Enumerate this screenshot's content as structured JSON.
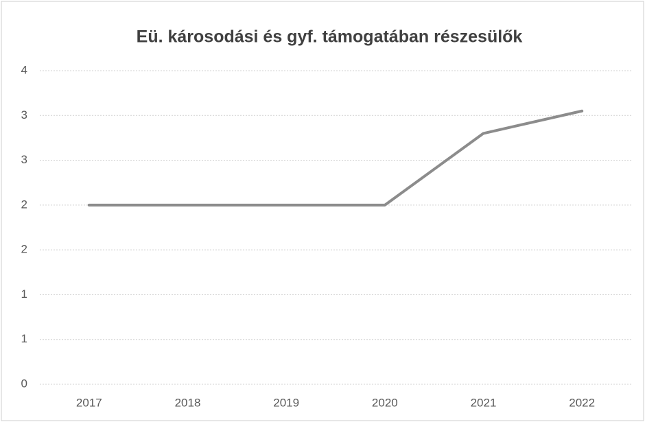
{
  "chart_data": {
    "type": "line",
    "title": "Eü. károsodási és gyf. támogatában részesülők",
    "categories": [
      "2017",
      "2018",
      "2019",
      "2020",
      "2021",
      "2022"
    ],
    "series": [
      {
        "name": "Eü. károsodási és gyf. támogatában részesülők",
        "color": "#8c8c8c",
        "values": [
          2,
          2,
          2,
          2,
          2.8,
          3.05
        ]
      }
    ],
    "ylim": [
      0,
      3.5
    ],
    "yticks": [
      0,
      {
        "value": 0.5,
        "label": "1"
      },
      1,
      {
        "value": 1.5,
        "label": "2"
      },
      2,
      {
        "value": 2.5,
        "label": "3"
      },
      3,
      {
        "value": 3.5,
        "label": "4"
      }
    ],
    "grid": true
  }
}
